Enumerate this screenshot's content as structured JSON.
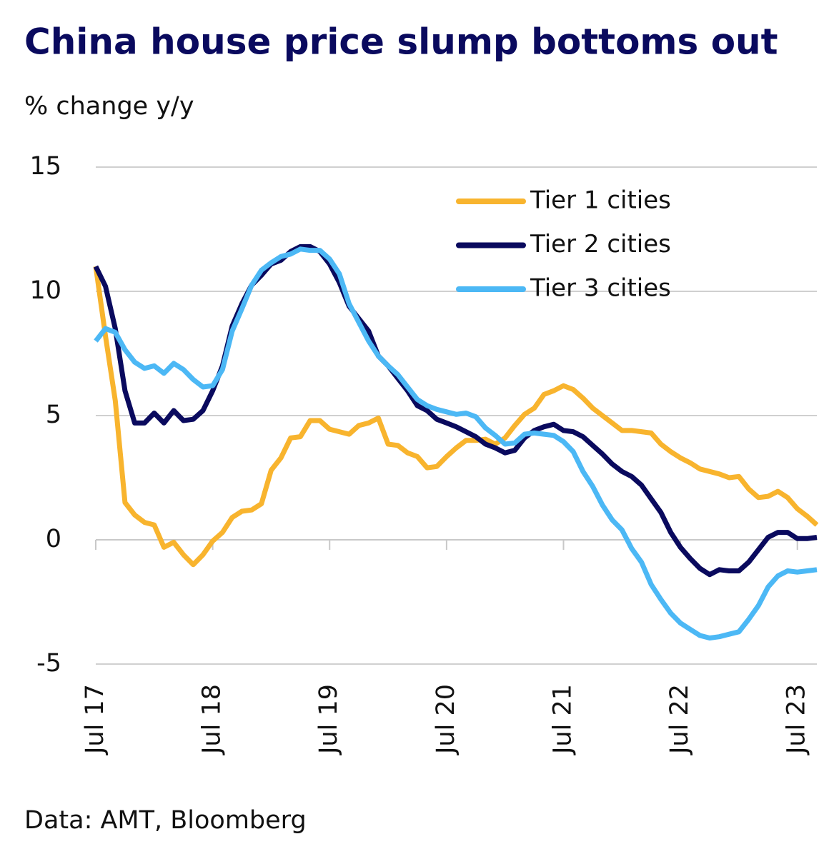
{
  "chart_data": {
    "type": "line",
    "title": "China house price slump bottoms out",
    "subtitle": "% change y/y",
    "source": "Data: AMT, Bloomberg",
    "categories": [
      "Jul 17",
      null,
      null,
      null,
      null,
      null,
      null,
      null,
      null,
      null,
      null,
      null,
      "Jul 18",
      null,
      null,
      null,
      null,
      null,
      null,
      null,
      null,
      null,
      null,
      null,
      "Jul 19",
      null,
      null,
      null,
      null,
      null,
      null,
      null,
      null,
      null,
      null,
      null,
      "Jul 20",
      null,
      null,
      null,
      null,
      null,
      null,
      null,
      null,
      null,
      null,
      null,
      "Jul 21",
      null,
      null,
      null,
      null,
      null,
      null,
      null,
      null,
      null,
      null,
      null,
      "Jul 22",
      null,
      null,
      null,
      null,
      null,
      null,
      null,
      null,
      null,
      null,
      null,
      "Jul 23",
      null,
      null
    ],
    "ylim": [
      -5,
      15
    ],
    "yticks": [
      -5,
      0,
      5,
      10,
      15
    ],
    "grid": true,
    "legend": "top-right",
    "series": [
      {
        "name": "Tier 1 cities",
        "color": "#f8b42e",
        "values": [
          11.0,
          8.2,
          5.6,
          1.5,
          1.0,
          0.7,
          0.6,
          -0.3,
          -0.1,
          -0.6,
          -1.0,
          -0.6,
          -0.05,
          0.3,
          0.9,
          1.15,
          1.2,
          1.45,
          2.8,
          3.3,
          4.1,
          4.15,
          4.8,
          4.8,
          4.45,
          4.35,
          4.25,
          4.6,
          4.7,
          4.9,
          3.85,
          3.8,
          3.5,
          3.35,
          2.9,
          2.95,
          3.35,
          3.7,
          4.0,
          4.0,
          4.05,
          3.85,
          4.1,
          4.6,
          5.05,
          5.3,
          5.85,
          6.0,
          6.2,
          6.05,
          5.7,
          5.3,
          5.0,
          4.7,
          4.4,
          4.4,
          4.35,
          4.3,
          3.85,
          3.55,
          3.3,
          3.1,
          2.85,
          2.75,
          2.65,
          2.5,
          2.55,
          2.05,
          1.7,
          1.75,
          1.95,
          1.7,
          1.25,
          0.95,
          0.6
        ]
      },
      {
        "name": "Tier 2 cities",
        "color": "#0a0a5e",
        "values": [
          11.0,
          10.2,
          8.5,
          6.0,
          4.7,
          4.7,
          5.1,
          4.7,
          5.2,
          4.8,
          4.85,
          5.2,
          6.0,
          7.0,
          8.6,
          9.5,
          10.25,
          10.65,
          11.1,
          11.25,
          11.6,
          11.8,
          11.8,
          11.6,
          11.1,
          10.35,
          9.4,
          8.9,
          8.4,
          7.4,
          7.0,
          6.5,
          6.0,
          5.4,
          5.2,
          4.85,
          4.7,
          4.55,
          4.35,
          4.15,
          3.85,
          3.7,
          3.5,
          3.6,
          4.1,
          4.4,
          4.55,
          4.65,
          4.4,
          4.35,
          4.15,
          3.8,
          3.45,
          3.05,
          2.75,
          2.55,
          2.2,
          1.65,
          1.1,
          0.3,
          -0.3,
          -0.75,
          -1.15,
          -1.4,
          -1.2,
          -1.25,
          -1.25,
          -0.9,
          -0.4,
          0.1,
          0.3,
          0.3,
          0.05,
          0.05,
          0.1
        ]
      },
      {
        "name": "Tier 3 cities",
        "color": "#4cb8f5",
        "values": [
          8.0,
          8.5,
          8.35,
          7.65,
          7.15,
          6.9,
          7.0,
          6.7,
          7.1,
          6.85,
          6.45,
          6.15,
          6.2,
          6.85,
          8.4,
          9.3,
          10.25,
          10.85,
          11.15,
          11.4,
          11.5,
          11.7,
          11.65,
          11.65,
          11.3,
          10.7,
          9.5,
          8.75,
          8.0,
          7.4,
          7.0,
          6.65,
          6.15,
          5.65,
          5.4,
          5.25,
          5.15,
          5.05,
          5.1,
          4.95,
          4.5,
          4.2,
          3.85,
          3.9,
          4.25,
          4.3,
          4.25,
          4.2,
          3.95,
          3.55,
          2.75,
          2.15,
          1.4,
          0.8,
          0.4,
          -0.35,
          -0.9,
          -1.8,
          -2.4,
          -2.95,
          -3.35,
          -3.6,
          -3.85,
          -3.95,
          -3.9,
          -3.8,
          -3.7,
          -3.2,
          -2.65,
          -1.9,
          -1.45,
          -1.25,
          -1.3,
          -1.25,
          -1.2
        ]
      }
    ]
  }
}
